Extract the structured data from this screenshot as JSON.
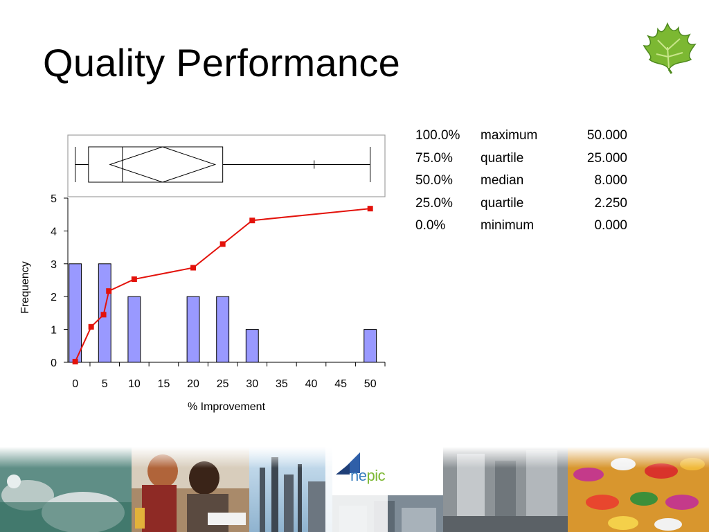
{
  "slide": {
    "title": "Quality Performance"
  },
  "colors": {
    "bar_fill": "#9999ff",
    "line_color": "#e3120b",
    "accent_green": "#7cb832",
    "accent_blue": "#2f5fa8"
  },
  "footer": {
    "logo_text_a": "ne",
    "logo_text_b": "pic"
  },
  "icons": [
    "maple-leaf-icon",
    "nepic-logo-icon"
  ],
  "quantiles": [
    {
      "pct": "100.0%",
      "label": "maximum",
      "value": "50.000"
    },
    {
      "pct": "75.0%",
      "label": "quartile",
      "value": "25.000"
    },
    {
      "pct": "50.0%",
      "label": "median",
      "value": "8.000"
    },
    {
      "pct": "25.0%",
      "label": "quartile",
      "value": "2.250"
    },
    {
      "pct": "0.0%",
      "label": "minimum",
      "value": "0.000"
    }
  ],
  "chart_data": {
    "type": "bar",
    "xlabel": "% Improvement",
    "ylabel": "Frequency",
    "xlim": [
      -1.25,
      52.5
    ],
    "ylim": [
      0,
      5
    ],
    "x_ticks": [
      0,
      5,
      10,
      15,
      20,
      25,
      30,
      35,
      40,
      45,
      50
    ],
    "y_ticks": [
      0,
      1,
      2,
      3,
      4,
      5
    ],
    "grid": false,
    "series": [
      {
        "type": "bar",
        "x": [
          0,
          5,
          10,
          15,
          20,
          25,
          30,
          35,
          40,
          45,
          50
        ],
        "values": [
          3,
          3,
          2,
          0,
          2,
          2,
          1,
          0,
          0,
          0,
          1
        ]
      },
      {
        "type": "line",
        "x": [
          0,
          2.7,
          4.8,
          5.7,
          10,
          20,
          25,
          30,
          50
        ],
        "values": [
          0.02,
          1.08,
          1.45,
          2.17,
          2.53,
          2.88,
          3.6,
          4.32,
          4.68
        ]
      }
    ],
    "box_plot": {
      "min": 0,
      "q1": 2.25,
      "median": 8,
      "q3": 25,
      "max": 50,
      "mean": 14.8,
      "ci": [
        5.9,
        23.7
      ],
      "extra_tick": 40.5
    }
  }
}
